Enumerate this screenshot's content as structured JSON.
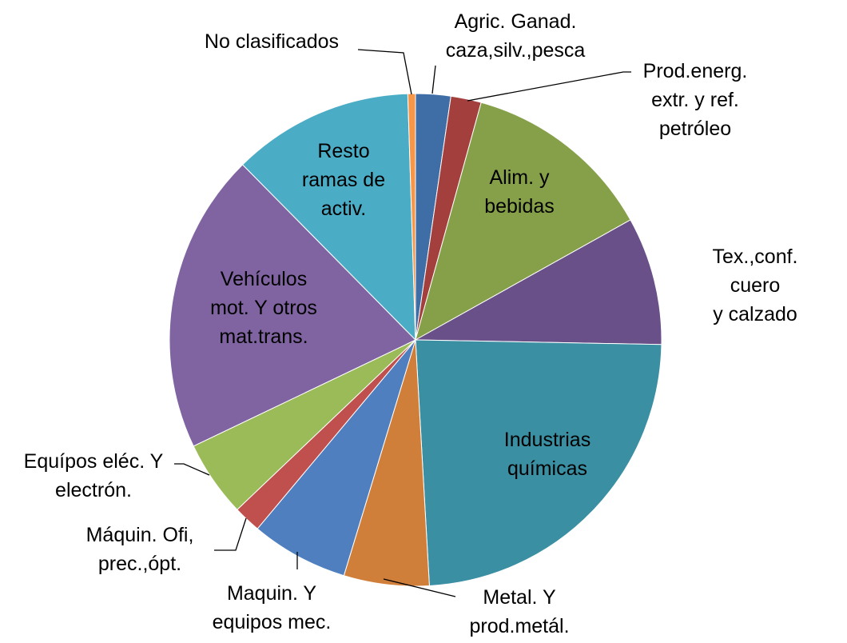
{
  "chart_data": {
    "type": "pie",
    "categories": [
      "Agric. Ganad.\ncaza,silv.,pesca",
      "Prod.energ.\nextr. y ref.\npetróleo",
      "Alim. y\nbebidas",
      "Tex.,conf. cuero\ny calzado",
      "Industrias\nquímicas",
      "Metal. Y\nprod.metál.",
      "Maquin. Y\nequipos mec.",
      "Máquin. Ofi,\nprec.,ópt.",
      "Equípos eléc. Y\nelectrón.",
      "Vehículos\nmot.  Y otros\nmat.trans.",
      "Resto\nramas de\nactiv.",
      "No clasificados"
    ],
    "values": [
      2.3,
      2,
      12.6,
      8.4,
      23.8,
      5.6,
      6.4,
      1.8,
      5,
      19.7,
      11.9,
      0.5
    ],
    "colors": [
      "#3f6ea6",
      "#a33f3c",
      "#86a04a",
      "#6a5088",
      "#3a8fa3",
      "#d07f3a",
      "#4f7fbf",
      "#c0504d",
      "#9bbb59",
      "#8064a2",
      "#4bacc6",
      "#f79646"
    ]
  }
}
